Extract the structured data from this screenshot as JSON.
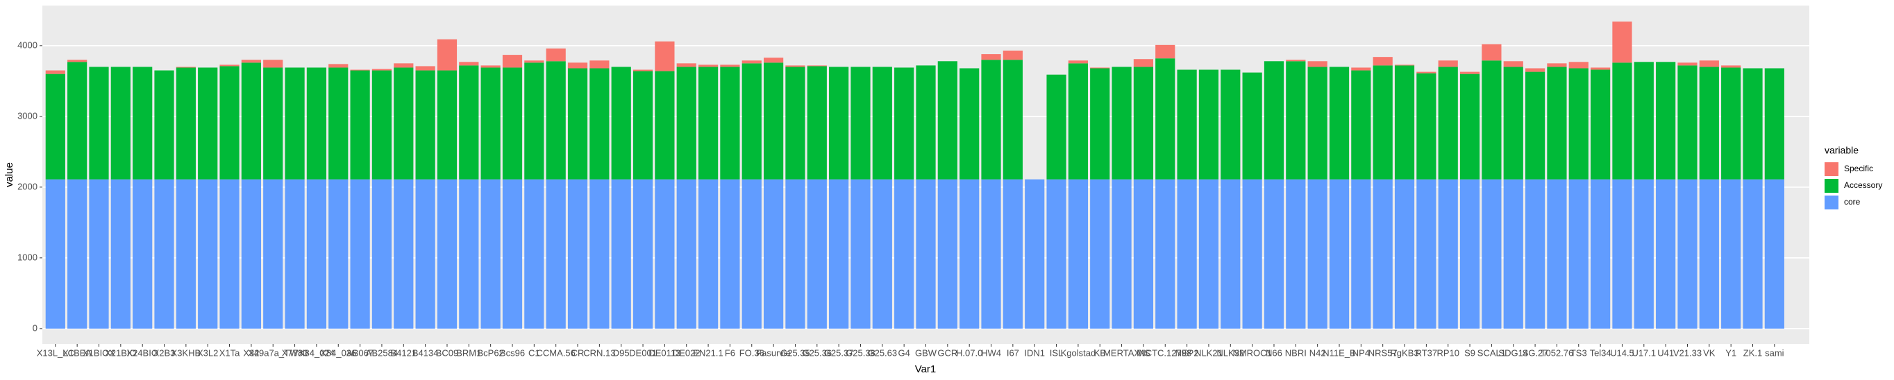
{
  "chart_data": {
    "type": "stacked_bar",
    "x_label": "Var1",
    "y_label": "value",
    "legend_title": "variable",
    "categories": [
      "X13L_LC",
      "X1BEA",
      "X1BIOX",
      "X21BIO",
      "X24BIO",
      "X2B3",
      "X3KHB",
      "X3L2",
      "X1Ta",
      "X32",
      "X49a7a_TW",
      "X7780",
      "X84_024",
      "X84_036",
      "AB067",
      "AB2584",
      "B4121",
      "B4134",
      "BC09",
      "BRM1",
      "BcP62",
      "Bcs96",
      "C1",
      "CCMA.56",
      "CR",
      "CRN.13",
      "D95",
      "DE001",
      "DE0113",
      "DE022",
      "EN21.1",
      "F6",
      "FO.36",
      "Fasurvie",
      "G25.35",
      "G25.36",
      "G25.37",
      "G25.38",
      "G25.63",
      "G4",
      "GBW",
      "GCR",
      "H.07.0",
      "HW4",
      "I67",
      "IDN1",
      "ISL",
      "Kgolstad",
      "KB",
      "MERTAX",
      "MS",
      "NCTC.12798",
      "NEP2",
      "NLK21",
      "NLK32",
      "NMROC1",
      "N66",
      "NBRI",
      "N42",
      "N11E_B",
      "NP4",
      "NRS57",
      "RgKB3",
      "RT37",
      "RP10",
      "S9",
      "SCAL1",
      "SDG14",
      "SG.27",
      "T052.76",
      "TS3",
      "Tel34",
      "U14.5",
      "U17.1",
      "U41",
      "V21.33",
      "VK",
      "Y1",
      "ZK.1",
      "sami"
    ],
    "series": [
      {
        "name": "Specific",
        "color": "#f8766d",
        "values": [
          50,
          30,
          0,
          0,
          0,
          0,
          10,
          0,
          20,
          40,
          110,
          0,
          0,
          50,
          10,
          20,
          60,
          60,
          440,
          50,
          30,
          180,
          30,
          180,
          80,
          110,
          0,
          20,
          420,
          50,
          30,
          30,
          40,
          70,
          20,
          10,
          0,
          0,
          0,
          0,
          0,
          0,
          0,
          80,
          130,
          0,
          0,
          40,
          10,
          0,
          110,
          190,
          0,
          0,
          0,
          0,
          0,
          20,
          80,
          0,
          40,
          120,
          10,
          20,
          90,
          30,
          230,
          80,
          50,
          50,
          90,
          30,
          580,
          0,
          0,
          40,
          90,
          30,
          0,
          0
        ]
      },
      {
        "name": "Accessory",
        "color": "#00ba38",
        "values": [
          1490,
          1660,
          1590,
          1590,
          1590,
          1540,
          1580,
          1580,
          1600,
          1650,
          1580,
          1580,
          1580,
          1580,
          1540,
          1540,
          1580,
          1540,
          1540,
          1610,
          1580,
          1580,
          1650,
          1670,
          1570,
          1570,
          1590,
          1530,
          1530,
          1590,
          1590,
          1590,
          1640,
          1650,
          1590,
          1600,
          1590,
          1590,
          1590,
          1580,
          1610,
          1670,
          1570,
          1690,
          1690,
          0,
          1480,
          1640,
          1570,
          1590,
          1590,
          1710,
          1550,
          1550,
          1550,
          1510,
          1670,
          1670,
          1590,
          1590,
          1540,
          1610,
          1610,
          1500,
          1590,
          1490,
          1680,
          1590,
          1520,
          1590,
          1570,
          1550,
          1650,
          1660,
          1660,
          1610,
          1590,
          1580,
          1570,
          1570
        ]
      },
      {
        "name": "core",
        "color": "#619cff",
        "values": [
          2110,
          2110,
          2110,
          2110,
          2110,
          2110,
          2110,
          2110,
          2110,
          2110,
          2110,
          2110,
          2110,
          2110,
          2110,
          2110,
          2110,
          2110,
          2110,
          2110,
          2110,
          2110,
          2110,
          2110,
          2110,
          2110,
          2110,
          2110,
          2110,
          2110,
          2110,
          2110,
          2110,
          2110,
          2110,
          2110,
          2110,
          2110,
          2110,
          2110,
          2110,
          2110,
          2110,
          2110,
          2110,
          2110,
          2110,
          2110,
          2110,
          2110,
          2110,
          2110,
          2110,
          2110,
          2110,
          2110,
          2110,
          2110,
          2110,
          2110,
          2110,
          2110,
          2110,
          2110,
          2110,
          2110,
          2110,
          2110,
          2110,
          2110,
          2110,
          2110,
          2110,
          2110,
          2110,
          2110,
          2110,
          2110,
          2110,
          2110
        ]
      }
    ],
    "ylim": [
      -217,
      4567
    ],
    "yticks": [
      0,
      1000,
      2000,
      3000,
      4000
    ],
    "grid": true,
    "legend": "right"
  }
}
